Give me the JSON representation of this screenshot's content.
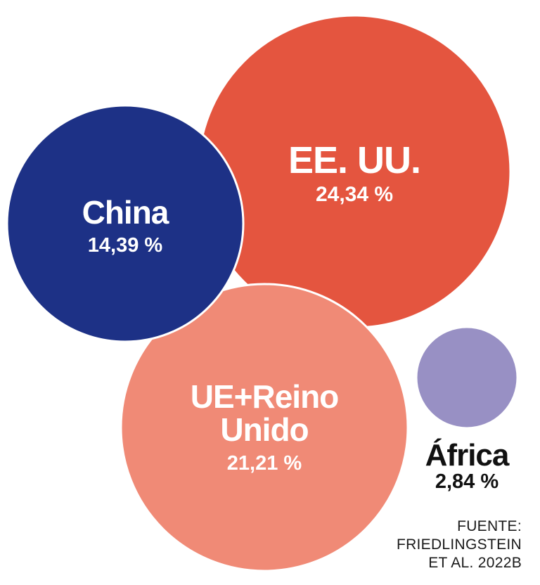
{
  "chart_data": {
    "type": "bubble",
    "title": "",
    "unit": "%",
    "series": [
      {
        "name": "EE. UU.",
        "name_lines": [
          "EE. UU."
        ],
        "value": 24.34,
        "value_label": "24,34 %",
        "color": "#e4553f",
        "label_color": "#ffffff"
      },
      {
        "name": "UE+Reino Unido",
        "name_lines": [
          "UE+Reino",
          "Unido"
        ],
        "value": 21.21,
        "value_label": "21,21 %",
        "color": "#f08a76",
        "label_color": "#ffffff"
      },
      {
        "name": "China",
        "name_lines": [
          "China"
        ],
        "value": 14.39,
        "value_label": "14,39 %",
        "color": "#1d3186",
        "label_color": "#ffffff"
      },
      {
        "name": "África",
        "name_lines": [
          "África"
        ],
        "value": 2.84,
        "value_label": "2,84 %",
        "color": "#9890c4",
        "label_color": "#111111"
      }
    ]
  },
  "source": {
    "lines": [
      "FUENTE:",
      "FRIEDLINGSTEIN",
      "ET AL. 2022B"
    ]
  },
  "colors": {
    "background": "#ffffff",
    "outline": "#ffffff",
    "text_dark": "#111111"
  }
}
